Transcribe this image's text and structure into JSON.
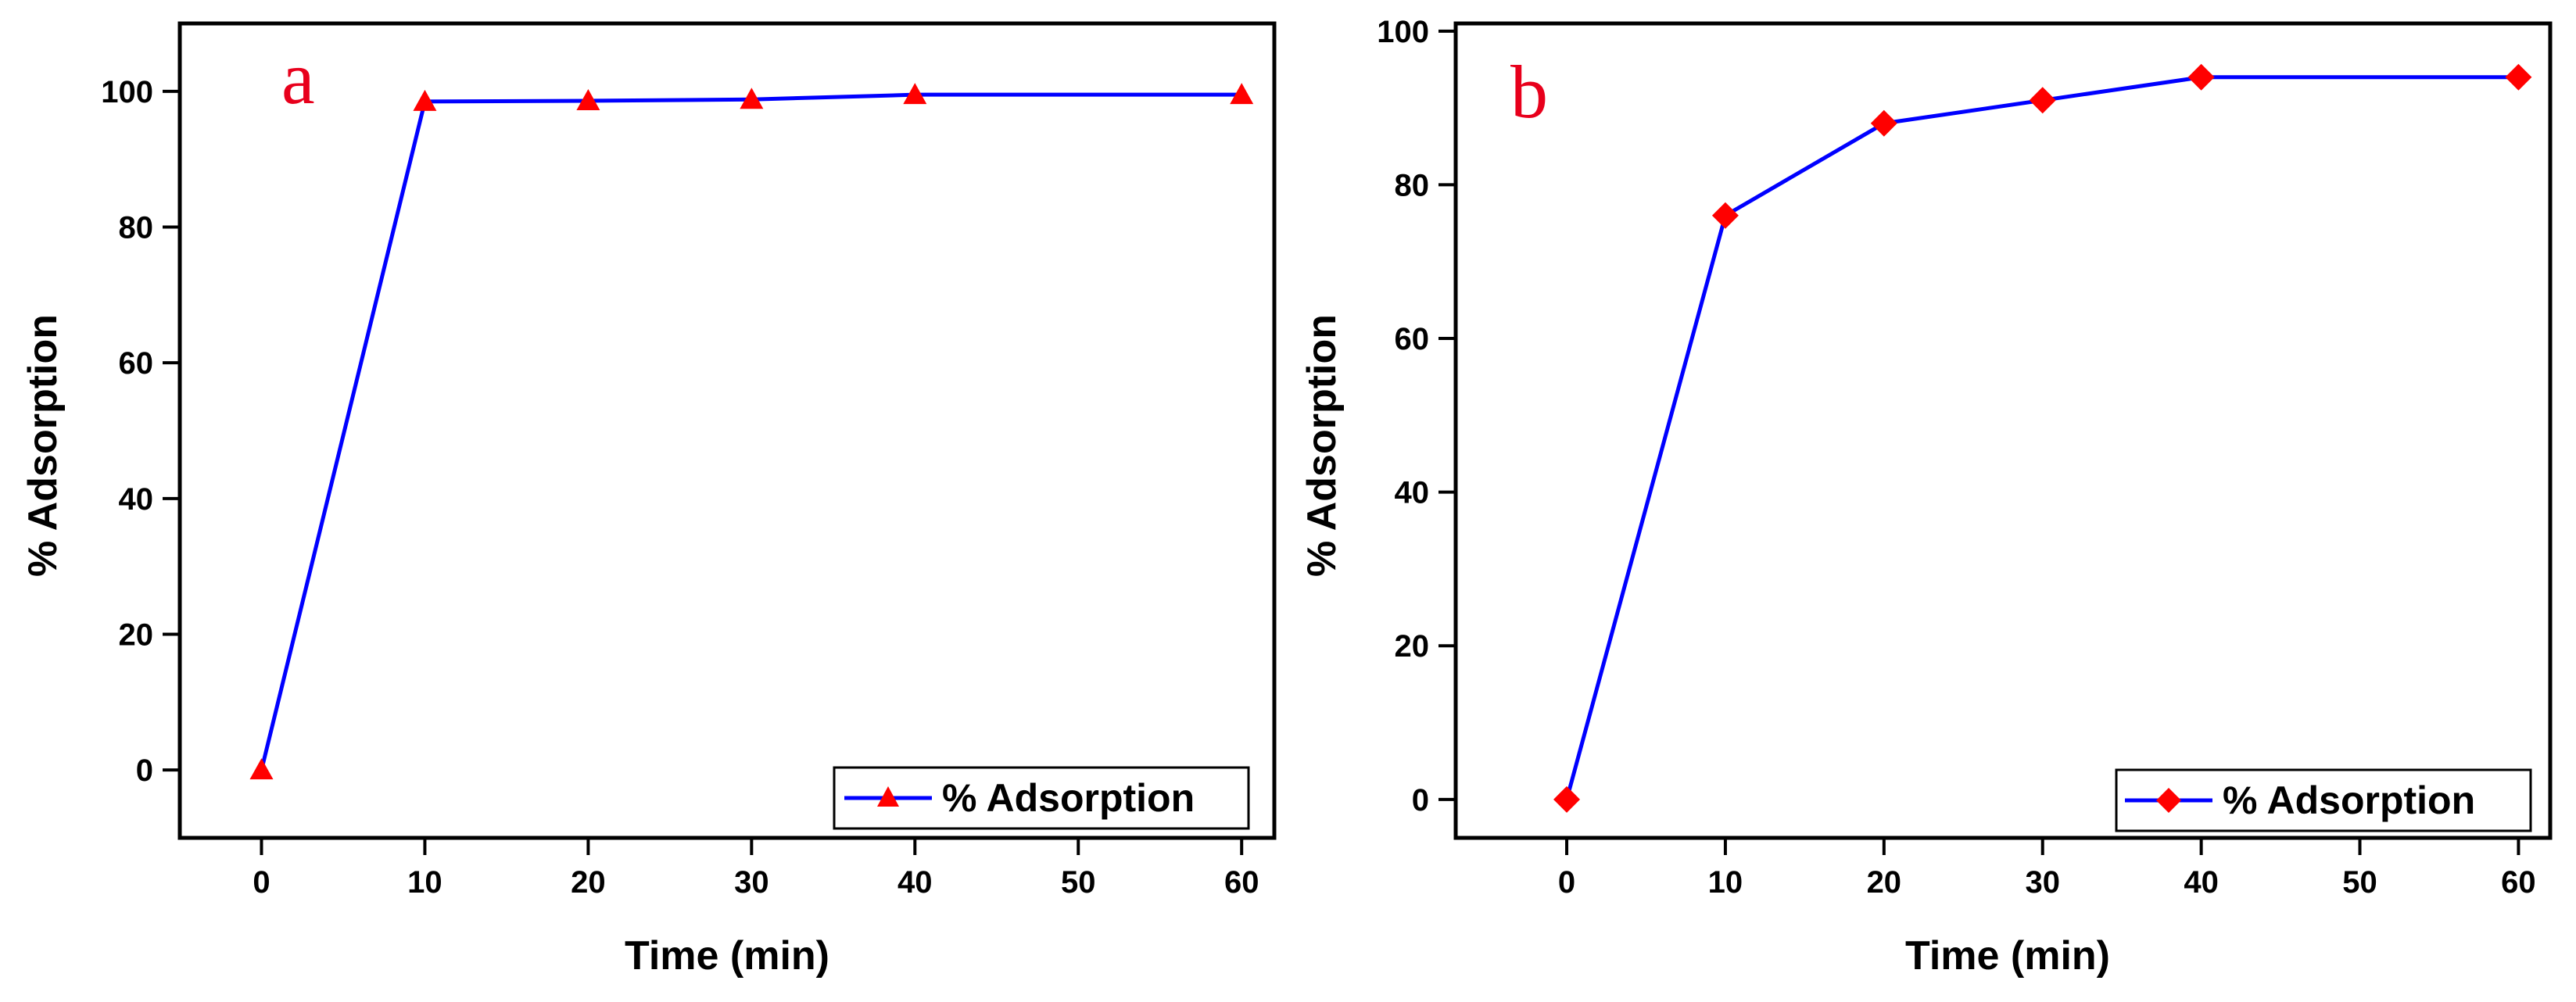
{
  "colors": {
    "line": "#0000ff",
    "marker": "#ff0000",
    "axis": "#000000",
    "panel_label": "#e8001c"
  },
  "chart_data": [
    {
      "type": "line",
      "panel_label": "a",
      "marker": "triangle",
      "xlabel": "Time (min)",
      "ylabel": "% Adsorption",
      "xlim": [
        -5,
        62
      ],
      "ylim": [
        -10,
        110
      ],
      "xticks": [
        0,
        10,
        20,
        30,
        40,
        50,
        60
      ],
      "yticks": [
        0,
        20,
        40,
        60,
        80,
        100
      ],
      "legend": {
        "label": "% Adsorption",
        "position": "bottom-right"
      },
      "series": [
        {
          "name": "% Adsorption",
          "x": [
            0,
            10,
            20,
            30,
            40,
            60
          ],
          "y": [
            0,
            98.5,
            98.6,
            98.8,
            99.5,
            99.5
          ]
        }
      ]
    },
    {
      "type": "line",
      "panel_label": "b",
      "marker": "diamond",
      "xlabel": "Time (min)",
      "ylabel": "% Adsorption",
      "xlim": [
        -7,
        62
      ],
      "ylim": [
        -5,
        101
      ],
      "xticks": [
        0,
        10,
        20,
        30,
        40,
        50,
        60
      ],
      "yticks": [
        0,
        20,
        40,
        60,
        80,
        100
      ],
      "legend": {
        "label": "% Adsorption",
        "position": "bottom-right"
      },
      "series": [
        {
          "name": "% Adsorption",
          "x": [
            0,
            10,
            20,
            30,
            40,
            60
          ],
          "y": [
            0,
            76,
            88,
            91,
            94,
            94
          ]
        }
      ]
    }
  ]
}
